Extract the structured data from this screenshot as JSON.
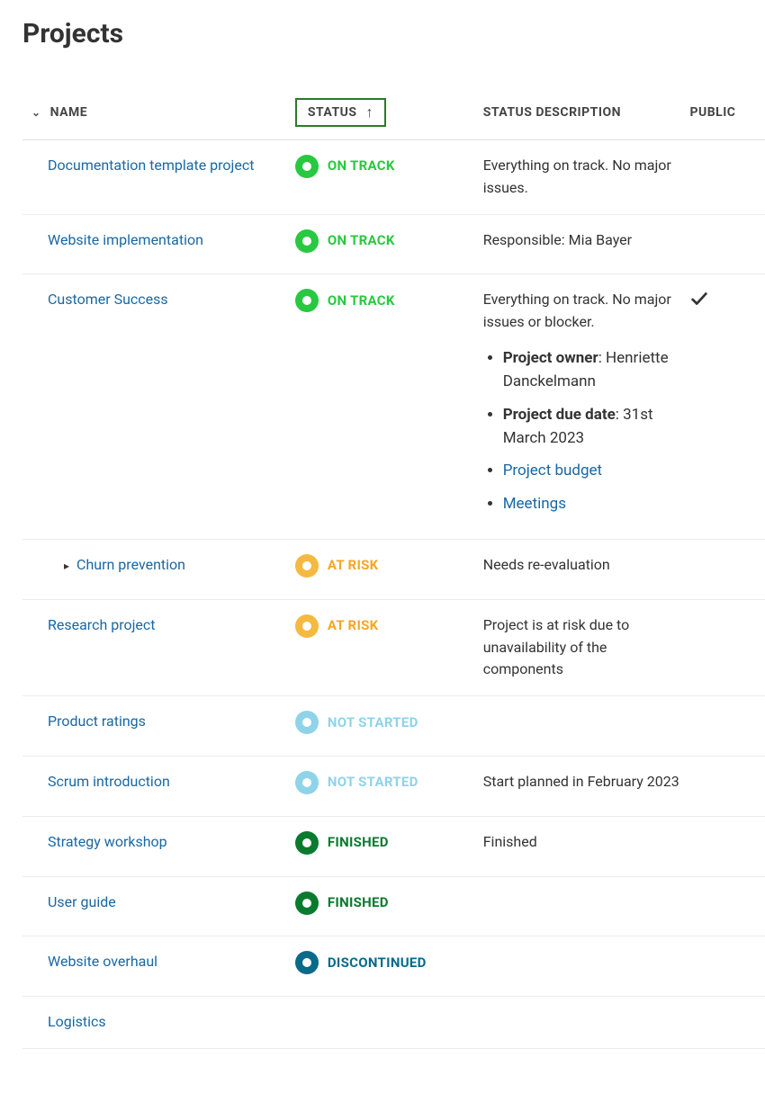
{
  "title": "Projects",
  "columns": {
    "name": "NAME",
    "status": "STATUS",
    "status_desc": "STATUS DESCRIPTION",
    "public": "PUBLIC"
  },
  "status_styles": {
    "on_track": {
      "label": "ON TRACK",
      "dot_color": "#28c840",
      "text_color": "#28c840"
    },
    "at_risk": {
      "label": "AT RISK",
      "dot_color": "#f5b942",
      "text_color": "#f5a623"
    },
    "not_started": {
      "label": "NOT STARTED",
      "dot_color": "#8fd3e8",
      "text_color": "#8fd3e8"
    },
    "finished": {
      "label": "FINISHED",
      "dot_color": "#0a7a2f",
      "text_color": "#0a7a2f"
    },
    "discontinued": {
      "label": "DISCONTINUED",
      "dot_color": "#0a6a8a",
      "text_color": "#0a6a8a"
    }
  },
  "rows": [
    {
      "name": "Documentation template project",
      "status_key": "on_track",
      "desc": "Everything on track. No major issues.",
      "public": false,
      "indent": 0
    },
    {
      "name": "Website implementation",
      "status_key": "on_track",
      "desc": "Responsible: Mia Bayer",
      "public": false,
      "indent": 0
    },
    {
      "name": "Customer Success",
      "status_key": "on_track",
      "desc": "Everything on track. No major issues or blocker.",
      "details": {
        "owner_label": "Project owner",
        "owner_value": "Henriette Danckelmann",
        "due_label": "Project due date",
        "due_value": "31st March 2023",
        "links": [
          "Project budget",
          "Meetings"
        ]
      },
      "public": true,
      "indent": 0
    },
    {
      "name": "Churn prevention",
      "status_key": "at_risk",
      "desc": "Needs re-evaluation",
      "public": false,
      "indent": 1,
      "expandable": true
    },
    {
      "name": "Research project",
      "status_key": "at_risk",
      "desc": "Project is at risk due to unavailability of the components",
      "public": false,
      "indent": 0
    },
    {
      "name": "Product ratings",
      "status_key": "not_started",
      "desc": "",
      "public": false,
      "indent": 0
    },
    {
      "name": "Scrum introduction",
      "status_key": "not_started",
      "desc": "Start planned in February 2023",
      "public": false,
      "indent": 0
    },
    {
      "name": "Strategy workshop",
      "status_key": "finished",
      "desc": "Finished",
      "public": false,
      "indent": 0
    },
    {
      "name": "User guide",
      "status_key": "finished",
      "desc": "",
      "public": false,
      "indent": 0
    },
    {
      "name": "Website overhaul",
      "status_key": "discontinued",
      "desc": "",
      "public": false,
      "indent": 0
    },
    {
      "name": "Logistics",
      "status_key": "",
      "desc": "",
      "public": false,
      "indent": 0
    }
  ]
}
